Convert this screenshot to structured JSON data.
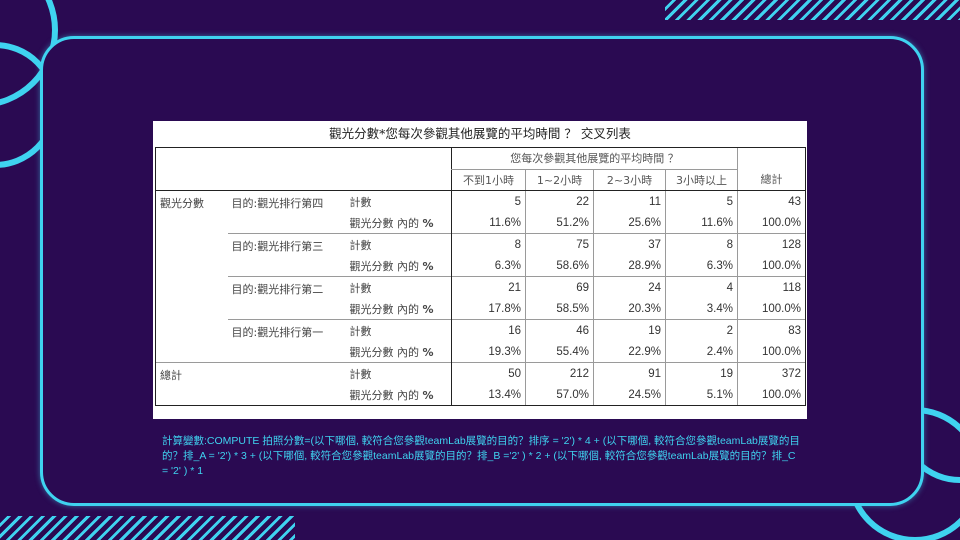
{
  "slide": {
    "colors": {
      "background": "#2a0a52",
      "accent": "#3fd3f0"
    }
  },
  "table": {
    "title": "觀光分數*您每次參觀其他展覽的平均時間 ？ 交叉列表",
    "column_group": "您每次參觀其他展覽的平均時間 ？",
    "columns": [
      "不到1小時",
      "1~2小時",
      "2~3小時",
      "3小時以上"
    ],
    "total_header": "總計",
    "row_var": "觀光分數",
    "count_label": "計數",
    "pct_label": "觀光分數 內的",
    "pct_sign": "%",
    "rows": [
      {
        "label": "目的:觀光排行第四",
        "counts": [
          "5",
          "22",
          "11",
          "5",
          "43"
        ],
        "pcts": [
          "11.6%",
          "51.2%",
          "25.6%",
          "11.6%",
          "100.0%"
        ]
      },
      {
        "label": "目的:觀光排行第三",
        "counts": [
          "8",
          "75",
          "37",
          "8",
          "128"
        ],
        "pcts": [
          "6.3%",
          "58.6%",
          "28.9%",
          "6.3%",
          "100.0%"
        ]
      },
      {
        "label": "目的:觀光排行第二",
        "counts": [
          "21",
          "69",
          "24",
          "4",
          "118"
        ],
        "pcts": [
          "17.8%",
          "58.5%",
          "20.3%",
          "3.4%",
          "100.0%"
        ]
      },
      {
        "label": "目的:觀光排行第一",
        "counts": [
          "16",
          "46",
          "19",
          "2",
          "83"
        ],
        "pcts": [
          "19.3%",
          "55.4%",
          "22.9%",
          "2.4%",
          "100.0%"
        ]
      }
    ],
    "total_row": {
      "label": "總計",
      "counts": [
        "50",
        "212",
        "91",
        "19",
        "372"
      ],
      "pcts": [
        "13.4%",
        "57.0%",
        "24.5%",
        "5.1%",
        "100.0%"
      ]
    }
  },
  "formula": "計算變數:COMPUTE 拍照分數=(以下哪個, 較符合您參觀teamLab展覽的目的？排序 = '2') * 4 + (以下哪個, 較符合您參觀teamLab展覽的目的？排_A = '2') * 3 + (以下哪個, 較符合您參觀teamLab展覽的目的？排_B ='2' ) * 2 + (以下哪個, 較符合您參觀teamLab展覽的目的？排_C = '2' ) * 1"
}
